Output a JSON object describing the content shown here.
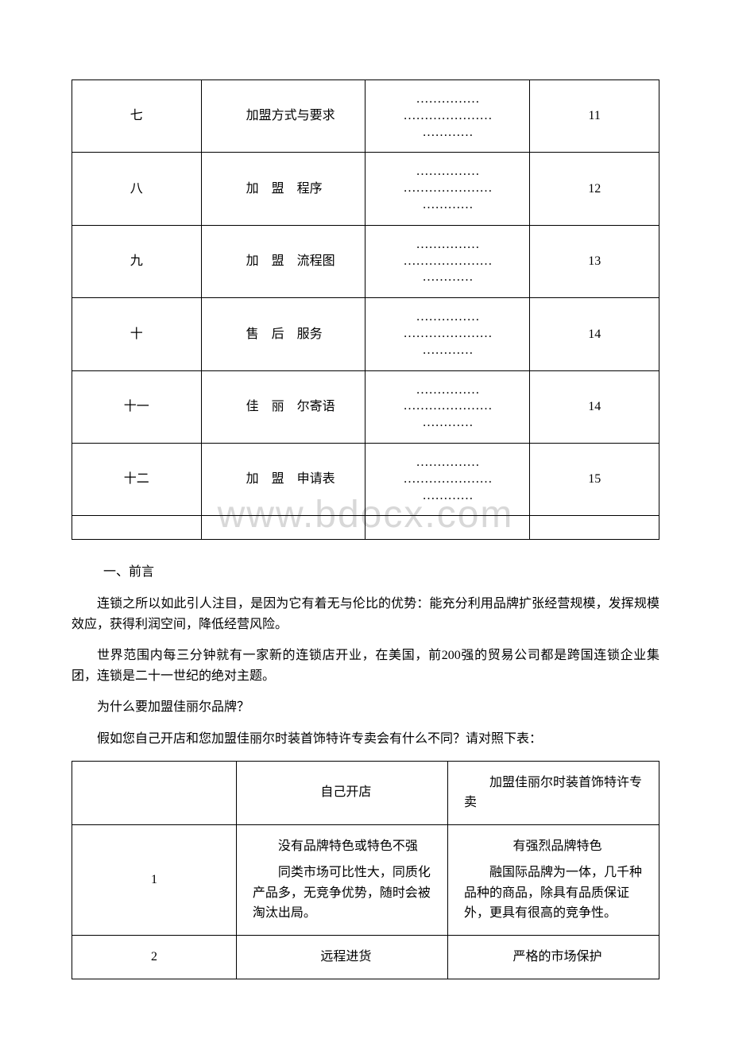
{
  "watermark": "www.bdocx.com",
  "toc": {
    "rows": [
      {
        "num": "七",
        "title": "加盟方式与要求",
        "dots": "……………\n…………………\n…………",
        "page": "11"
      },
      {
        "num": "八",
        "title": "加　盟　程序",
        "dots": "……………\n…………………\n…………",
        "page": "12"
      },
      {
        "num": "九",
        "title": "加　盟　流程图",
        "dots": "……………\n…………………\n…………",
        "page": "13"
      },
      {
        "num": "十",
        "title": "售　后　服务",
        "dots": "……………\n…………………\n…………",
        "page": "14"
      },
      {
        "num": "十一",
        "title": "佳　丽　尔寄语",
        "dots": "……………\n…………………\n…………",
        "page": "14"
      },
      {
        "num": "十二",
        "title": "加　盟　申请表",
        "dots": "……………\n…………………\n…………",
        "page": "15"
      }
    ]
  },
  "section1": {
    "heading": "一、前言",
    "p1": "连锁之所以如此引人注目，是因为它有着无与伦比的优势：能充分利用品牌扩张经营规模，发挥规模效应，获得利润空间，降低经营风险。",
    "p2": "世界范围内每三分钟就有一家新的连锁店开业，在美国，前200强的贸易公司都是跨国连锁企业集团，连锁是二十一世纪的绝对主题。",
    "p3": "为什么要加盟佳丽尔品牌？",
    "p4": "假如您自己开店和您加盟佳丽尔时装首饰特许专卖会有什么不同？请对照下表："
  },
  "compare": {
    "headers": {
      "col2": "自己开店",
      "col3": "加盟佳丽尔时装首饰特许专卖"
    },
    "row1": {
      "num": "1",
      "self_a": "没有品牌特色或特色不强",
      "self_b": "同类市场可比性大，同质化产品多，无竞争优势，随时会被淘汰出局。",
      "join_a": "有强烈品牌特色",
      "join_b": "融国际品牌为一体，几千种品种的商品，除具有品质保证外，更具有很高的竞争性。"
    },
    "row2": {
      "num": "2",
      "self": "远程进货",
      "join": "严格的市场保护"
    }
  }
}
